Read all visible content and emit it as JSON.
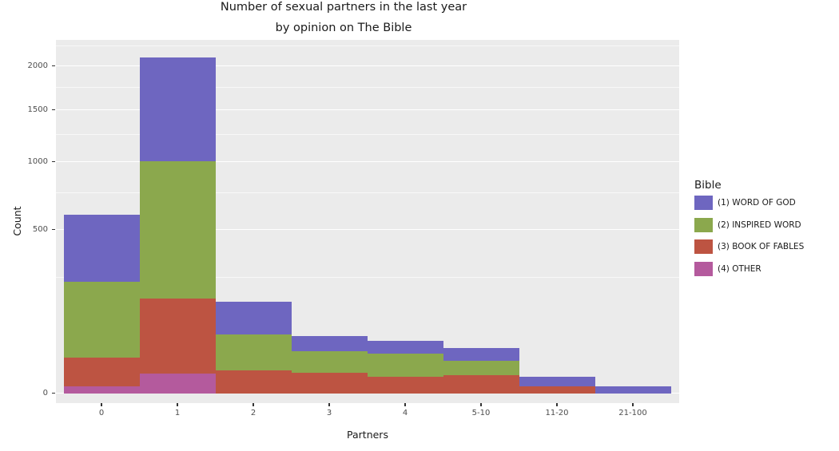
{
  "figure": {
    "background": "#ffffff",
    "panel_background": "#EBEBEB",
    "grid_color": "#ffffff",
    "tick_text_color": "#4d4d4d",
    "text_color": "#1a1a1a"
  },
  "chart_data": {
    "type": "bar",
    "stacked": true,
    "title": "Number of sexual partners in the last year",
    "subtitle": "by opinion on The Bible",
    "xlabel": "Partners",
    "ylabel": "Count",
    "yscale": "sqrt",
    "ylim": [
      0,
      2250
    ],
    "yticks": [
      0,
      500,
      1000,
      1500,
      2000
    ],
    "yticks_minor": [
      250,
      750,
      1250,
      1750,
      2250
    ],
    "grid": true,
    "legend_title": "Bible",
    "legend_position": "right",
    "categories": [
      "0",
      "1",
      "2",
      "3",
      "4",
      "5-10",
      "11-20",
      "21-100"
    ],
    "series": [
      {
        "name": "(1) WORD OF GOD",
        "color": "#6E66C0",
        "values": [
          362,
          1095,
          92,
          28,
          23,
          18,
          4,
          1
        ]
      },
      {
        "name": "(2) INSPIRED WORD",
        "color": "#8BA84D",
        "values": [
          207,
          840,
          54,
          25,
          24,
          14,
          0,
          0
        ]
      },
      {
        "name": "(3) BOOK OF FABLES",
        "color": "#BD5442",
        "values": [
          23,
          160,
          10,
          8,
          5,
          6,
          1,
          0
        ]
      },
      {
        "name": "(4) OTHER",
        "color": "#B45A9D",
        "values": [
          1,
          7,
          0,
          0,
          0,
          0,
          0,
          0
        ]
      }
    ]
  }
}
